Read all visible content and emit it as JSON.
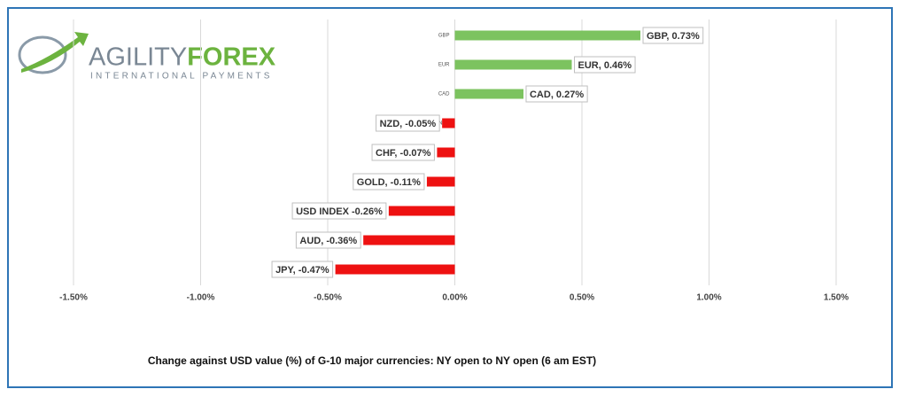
{
  "logo": {
    "word1": "AGILITY",
    "word2": "FOREX",
    "tagline": "INTERNATIONAL PAYMENTS"
  },
  "chart_data": {
    "type": "bar",
    "orientation": "horizontal",
    "x_label": "Change against  USD value (%)  of  G-10 major currencies:  NY open to NY open  (6 am EST)",
    "categories": [
      "GBP",
      "EUR",
      "CAD",
      "NZD",
      "CHF",
      "GOLD",
      "USD INDEX",
      "AUD",
      "JPY"
    ],
    "values": [
      0.73,
      0.46,
      0.27,
      -0.05,
      -0.07,
      -0.11,
      -0.26,
      -0.36,
      -0.47
    ],
    "value_labels": [
      "GBP, 0.73%",
      "EUR, 0.46%",
      "CAD, 0.27%",
      "NZD, -0.05%",
      "CHF, -0.07%",
      "GOLD, -0.11%",
      "USD INDEX -0.26%",
      "AUD, -0.36%",
      "JPY, -0.47%"
    ],
    "positive_color": "#7cc35f",
    "negative_color": "#ee1111",
    "xlim": [
      -1.5,
      1.5
    ],
    "xticks": [
      {
        "value": -1.5,
        "label": "-1.50%"
      },
      {
        "value": -1,
        "label": "-1.00%"
      },
      {
        "value": -0.5,
        "label": "-0.50%"
      },
      {
        "value": 0,
        "label": "0.00%"
      },
      {
        "value": 0.5,
        "label": "0.50%"
      },
      {
        "value": 1,
        "label": "1.00%"
      },
      {
        "value": 1.5,
        "label": "1.50%"
      }
    ],
    "grid": true
  }
}
